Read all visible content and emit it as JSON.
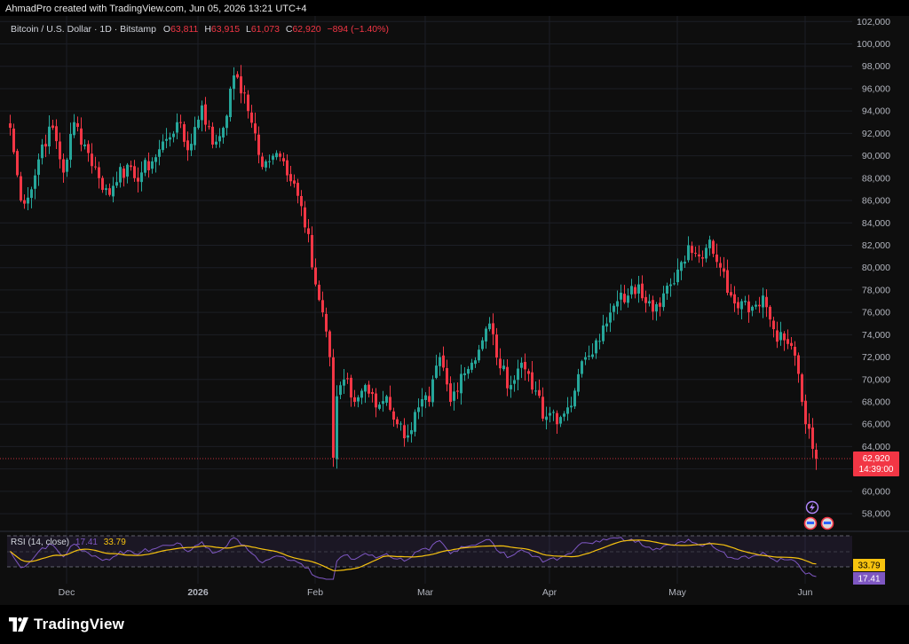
{
  "credit": "AhmadPro created with TradingView.com, Jun 05, 2026 13:21 UTC+4",
  "brand": {
    "name": "TradingView"
  },
  "legend": {
    "symbol": "Bitcoin / U.S. Dollar · 1D · Bitstamp",
    "o_label": "O",
    "o_value": "63,811",
    "h_label": "H",
    "h_value": "63,915",
    "l_label": "L",
    "l_value": "61,073",
    "c_label": "C",
    "c_value": "62,920",
    "change": "−894 (−1.40%)"
  },
  "rsi_legend": {
    "title": "RSI (14, close)",
    "rsi_value": "17.41",
    "ma_value": "33.79"
  },
  "colors": {
    "up": "#26a69a",
    "down": "#f23645",
    "rsi": "#7e57c2",
    "rsi_ma": "#f7c30f"
  },
  "chart_data": {
    "type": "candlestick",
    "price_axis": {
      "range": [
        56500,
        102500
      ],
      "ticks": [
        "102,000",
        "100,000",
        "98,000",
        "96,000",
        "94,000",
        "92,000",
        "90,000",
        "88,000",
        "86,000",
        "84,000",
        "82,000",
        "80,000",
        "78,000",
        "76,000",
        "74,000",
        "72,000",
        "70,000",
        "68,000",
        "66,000",
        "64,000",
        "62,000",
        "60,000",
        "58,000"
      ]
    },
    "time_axis": {
      "ticks": [
        "Dec",
        "2026",
        "Feb",
        "Mar",
        "Apr",
        "May",
        "Jun"
      ]
    },
    "last_price": {
      "value": 62920,
      "label": "62,920",
      "countdown": "14:39:00"
    },
    "key_points": [
      {
        "i": 0,
        "v": 92500
      },
      {
        "i": 3,
        "v": 86000
      },
      {
        "i": 6,
        "v": 87000
      },
      {
        "i": 9,
        "v": 91000
      },
      {
        "i": 12,
        "v": 92500
      },
      {
        "i": 15,
        "v": 88500
      },
      {
        "i": 18,
        "v": 93000
      },
      {
        "i": 21,
        "v": 91000
      },
      {
        "i": 25,
        "v": 88000
      },
      {
        "i": 28,
        "v": 86500
      },
      {
        "i": 31,
        "v": 89000
      },
      {
        "i": 35,
        "v": 88000
      },
      {
        "i": 40,
        "v": 89500
      },
      {
        "i": 44,
        "v": 91500
      },
      {
        "i": 47,
        "v": 93000
      },
      {
        "i": 50,
        "v": 90500
      },
      {
        "i": 54,
        "v": 94500
      },
      {
        "i": 57,
        "v": 91000
      },
      {
        "i": 60,
        "v": 92500
      },
      {
        "i": 62,
        "v": 96000
      },
      {
        "i": 64,
        "v": 97000
      },
      {
        "i": 67,
        "v": 94000
      },
      {
        "i": 69,
        "v": 92000
      },
      {
        "i": 71,
        "v": 89000
      },
      {
        "i": 74,
        "v": 90000
      },
      {
        "i": 77,
        "v": 89500
      },
      {
        "i": 80,
        "v": 87500
      },
      {
        "i": 82,
        "v": 85500
      },
      {
        "i": 84,
        "v": 83000
      },
      {
        "i": 86,
        "v": 78500
      },
      {
        "i": 88,
        "v": 76000
      },
      {
        "i": 90,
        "v": 72000
      },
      {
        "i": 91,
        "v": 63000
      },
      {
        "i": 92,
        "v": 68500
      },
      {
        "i": 94,
        "v": 70000
      },
      {
        "i": 97,
        "v": 68000
      },
      {
        "i": 100,
        "v": 69500
      },
      {
        "i": 103,
        "v": 67500
      },
      {
        "i": 106,
        "v": 68500
      },
      {
        "i": 109,
        "v": 66000
      },
      {
        "i": 112,
        "v": 65000
      },
      {
        "i": 115,
        "v": 67500
      },
      {
        "i": 118,
        "v": 68000
      },
      {
        "i": 121,
        "v": 72000
      },
      {
        "i": 124,
        "v": 68000
      },
      {
        "i": 127,
        "v": 70500
      },
      {
        "i": 130,
        "v": 71500
      },
      {
        "i": 133,
        "v": 73500
      },
      {
        "i": 135,
        "v": 75000
      },
      {
        "i": 138,
        "v": 71000
      },
      {
        "i": 141,
        "v": 69500
      },
      {
        "i": 144,
        "v": 71500
      },
      {
        "i": 146,
        "v": 70500
      },
      {
        "i": 148,
        "v": 69000
      },
      {
        "i": 150,
        "v": 66500
      },
      {
        "i": 152,
        "v": 67000
      },
      {
        "i": 154,
        "v": 66000
      },
      {
        "i": 157,
        "v": 67500
      },
      {
        "i": 159,
        "v": 69000
      },
      {
        "i": 162,
        "v": 72000
      },
      {
        "i": 165,
        "v": 73500
      },
      {
        "i": 168,
        "v": 75000
      },
      {
        "i": 171,
        "v": 77000
      },
      {
        "i": 174,
        "v": 77500
      },
      {
        "i": 177,
        "v": 78500
      },
      {
        "i": 180,
        "v": 77000
      },
      {
        "i": 183,
        "v": 76500
      },
      {
        "i": 186,
        "v": 78500
      },
      {
        "i": 189,
        "v": 80500
      },
      {
        "i": 191,
        "v": 82000
      },
      {
        "i": 194,
        "v": 81000
      },
      {
        "i": 197,
        "v": 82500
      },
      {
        "i": 200,
        "v": 80000
      },
      {
        "i": 203,
        "v": 77500
      },
      {
        "i": 206,
        "v": 77000
      },
      {
        "i": 209,
        "v": 76500
      },
      {
        "i": 212,
        "v": 77500
      },
      {
        "i": 215,
        "v": 74500
      },
      {
        "i": 218,
        "v": 73500
      },
      {
        "i": 220,
        "v": 73000
      },
      {
        "i": 222,
        "v": 70500
      },
      {
        "i": 224,
        "v": 66000
      },
      {
        "i": 226,
        "v": 63800
      },
      {
        "i": 227,
        "v": 62920
      }
    ]
  }
}
